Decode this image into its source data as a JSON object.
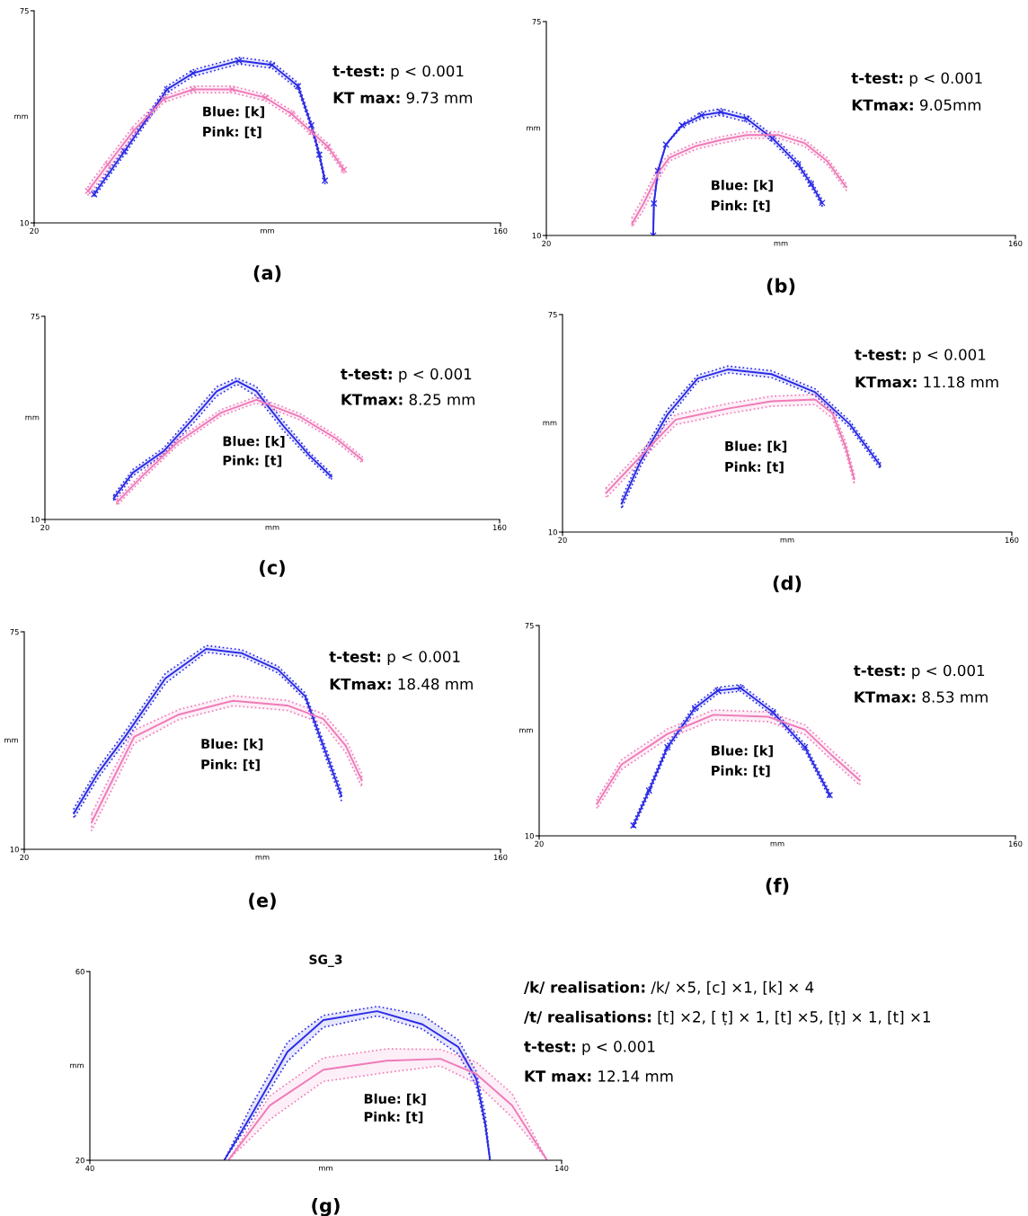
{
  "chart_data": [
    {
      "type": "line",
      "xlabel": "mm",
      "ylabel": "mm",
      "xlim": [
        20,
        160
      ],
      "ylim": [
        10,
        75
      ],
      "xticks": [
        20,
        160
      ],
      "yticks": [
        10,
        75
      ],
      "grid": false,
      "legend": false,
      "line_style": "solid",
      "annotations": [
        "(a)",
        "t-test: p < 0.001",
        "KT max: 9.73 mm",
        "Blue: [k]",
        "Pink: [t]"
      ],
      "series": [
        {
          "color": "#2b2be6",
          "marker": "cross",
          "x": [
            38.0,
            47.1,
            59.9,
            67.7,
            81.5,
            91.4,
            99.2,
            103.2,
            105.6,
            107.3
          ],
          "values": [
            18.8,
            31.9,
            50.9,
            55.9,
            59.7,
            58.4,
            51.9,
            39.9,
            30.9,
            23.0
          ],
          "lower": [
            17.8,
            30.9,
            49.9,
            54.9,
            58.7,
            57.4,
            50.9,
            38.9,
            29.9,
            22.0
          ],
          "upper": [
            19.8,
            32.9,
            51.9,
            56.9,
            60.7,
            59.4,
            52.9,
            40.9,
            31.9,
            24.0
          ]
        },
        {
          "color": "#f07ab8",
          "marker": "cross",
          "x": [
            36.2,
            42.1,
            50.0,
            58.9,
            67.7,
            79.5,
            89.4,
            97.3,
            103.2,
            108.1,
            113.0
          ],
          "values": [
            19.8,
            27.9,
            38.4,
            47.9,
            50.9,
            50.9,
            48.4,
            43.4,
            37.9,
            33.4,
            26.3
          ],
          "lower": [
            18.3,
            26.4,
            36.9,
            46.9,
            49.9,
            49.9,
            47.4,
            42.4,
            36.9,
            32.4,
            25.3
          ],
          "upper": [
            21.3,
            29.4,
            39.9,
            48.9,
            51.9,
            51.9,
            49.4,
            44.4,
            38.9,
            34.4,
            27.3
          ]
        }
      ]
    },
    {
      "type": "line",
      "xlabel": "mm",
      "ylabel": "mm",
      "xlim": [
        20,
        160
      ],
      "ylim": [
        10,
        75
      ],
      "xticks": [
        20,
        160
      ],
      "yticks": [
        10,
        75
      ],
      "grid": false,
      "legend": false,
      "line_style": "solid",
      "annotations": [
        "(b)",
        "t-test: p < 0.001",
        "KTmax: 9.05mm",
        "Blue: [k]",
        "Pink: [t]"
      ],
      "series": [
        {
          "color": "#2b2be6",
          "marker": "cross",
          "x": [
            51.9,
            52.1,
            53.3,
            55.7,
            60.5,
            66.3,
            72.1,
            79.8,
            87.5,
            95.1,
            99.0,
            102.3
          ],
          "values": [
            10.0,
            19.7,
            29.6,
            37.6,
            43.5,
            46.5,
            47.5,
            45.5,
            39.5,
            31.6,
            25.7,
            19.9
          ],
          "lower": [
            10.0,
            19.7,
            29.6,
            37.6,
            43.0,
            45.5,
            46.5,
            44.5,
            38.5,
            30.6,
            24.7,
            18.9
          ],
          "upper": [
            10.0,
            19.7,
            29.6,
            37.6,
            44.0,
            47.5,
            48.5,
            46.5,
            40.5,
            32.6,
            26.7,
            20.9
          ]
        },
        {
          "color": "#f07ab8",
          "marker": "none",
          "x": [
            45.6,
            49.0,
            53.8,
            56.7,
            64.4,
            72.1,
            79.8,
            89.4,
            97.0,
            103.8,
            109.5
          ],
          "values": [
            13.6,
            19.7,
            29.6,
            33.6,
            37.1,
            39.0,
            40.5,
            40.5,
            38.1,
            32.6,
            24.7
          ],
          "lower": [
            12.6,
            17.7,
            27.6,
            32.6,
            36.1,
            38.0,
            39.5,
            39.5,
            37.1,
            31.6,
            23.7
          ],
          "upper": [
            15.6,
            21.7,
            31.6,
            34.6,
            38.1,
            40.0,
            41.5,
            41.5,
            39.1,
            33.6,
            25.7
          ]
        }
      ]
    },
    {
      "type": "line",
      "xlabel": "mm",
      "ylabel": "mm",
      "xlim": [
        20,
        160
      ],
      "ylim": [
        10,
        75
      ],
      "xticks": [
        20,
        160
      ],
      "yticks": [
        10,
        75
      ],
      "grid": false,
      "legend": false,
      "line_style": "solid",
      "annotations": [
        "(c)",
        "t-test: p < 0.001",
        "KTmax: 8.25 mm",
        "Blue: [k]",
        "Pink: [t]"
      ],
      "series": [
        {
          "color": "#2b2be6",
          "marker": "none",
          "x": [
            41.2,
            47.1,
            56.6,
            66.1,
            72.9,
            79.1,
            85.1,
            93.3,
            101.4,
            108.2
          ],
          "values": [
            16.8,
            25.0,
            31.9,
            42.8,
            51.0,
            54.3,
            51.0,
            40.1,
            30.5,
            23.7
          ],
          "lower": [
            15.8,
            24.0,
            30.9,
            41.3,
            49.5,
            53.3,
            49.5,
            38.6,
            29.5,
            22.7
          ],
          "upper": [
            17.8,
            26.0,
            32.9,
            44.3,
            52.5,
            55.3,
            52.5,
            41.6,
            31.5,
            24.7
          ]
        },
        {
          "color": "#f07ab8",
          "marker": "none",
          "x": [
            42.2,
            49.8,
            60.7,
            74.3,
            85.1,
            98.7,
            109.5,
            117.7
          ],
          "values": [
            15.5,
            23.7,
            34.6,
            44.2,
            48.3,
            42.8,
            36.0,
            29.1
          ],
          "lower": [
            14.5,
            22.7,
            33.6,
            43.2,
            47.3,
            41.8,
            35.0,
            28.1
          ],
          "upper": [
            16.5,
            24.7,
            35.6,
            45.2,
            49.3,
            43.8,
            37.0,
            30.1
          ]
        }
      ]
    },
    {
      "type": "line",
      "xlabel": "mm",
      "ylabel": "mm",
      "xlim": [
        20,
        160
      ],
      "ylim": [
        10,
        75
      ],
      "xticks": [
        20,
        160
      ],
      "yticks": [
        10,
        75
      ],
      "grid": false,
      "legend": false,
      "line_style": "solid",
      "annotations": [
        "(d)",
        "t-test: p < 0.001",
        "KTmax: 11.18 mm",
        "Blue: [k]",
        "Pink: [t]"
      ],
      "series": [
        {
          "color": "#2b2be6",
          "marker": "none",
          "x": [
            38.4,
            44.4,
            52.6,
            62.1,
            71.5,
            85.1,
            98.7,
            109.5,
            119.0
          ],
          "values": [
            18.5,
            31.3,
            45.0,
            55.9,
            58.6,
            57.2,
            51.8,
            42.2,
            29.9
          ],
          "lower": [
            17.0,
            29.8,
            43.5,
            54.9,
            57.6,
            56.2,
            50.8,
            41.2,
            28.9
          ],
          "upper": [
            20.0,
            32.8,
            46.5,
            56.9,
            59.6,
            58.2,
            52.8,
            43.2,
            30.9
          ]
        },
        {
          "color": "#f07ab8",
          "marker": "none",
          "x": [
            33.6,
            44.4,
            55.3,
            71.5,
            85.1,
            98.7,
            104.1,
            108.2,
            110.9
          ],
          "values": [
            21.7,
            32.7,
            43.6,
            46.9,
            49.1,
            49.6,
            45.5,
            35.4,
            25.8
          ],
          "lower": [
            20.2,
            31.2,
            42.1,
            45.4,
            47.6,
            48.1,
            44.0,
            33.9,
            24.3
          ],
          "upper": [
            23.2,
            34.2,
            45.1,
            48.4,
            50.6,
            51.1,
            47.0,
            36.9,
            27.3
          ]
        }
      ]
    },
    {
      "type": "line",
      "xlabel": "mm",
      "ylabel": "mm",
      "xlim": [
        20,
        160
      ],
      "ylim": [
        10,
        75
      ],
      "xticks": [
        20,
        160
      ],
      "yticks": [
        10,
        75
      ],
      "grid": false,
      "legend": false,
      "line_style": "solid",
      "annotations": [
        "(e)",
        "t-test: p < 0.001",
        "KTmax: 18.48 mm",
        "Blue: [k]",
        "Pink: [t]"
      ],
      "series": [
        {
          "color": "#2b2be6",
          "marker": "none",
          "x": [
            34.6,
            41.7,
            49.6,
            61.5,
            73.5,
            84.0,
            94.6,
            102.6,
            107.9,
            113.2
          ],
          "values": [
            20.8,
            32.8,
            43.6,
            61.1,
            69.9,
            68.6,
            63.7,
            55.7,
            40.9,
            26.1
          ],
          "lower": [
            19.3,
            31.3,
            42.1,
            59.6,
            68.9,
            67.6,
            62.7,
            54.7,
            39.4,
            24.6
          ],
          "upper": [
            22.3,
            34.3,
            45.1,
            62.6,
            70.9,
            69.6,
            64.7,
            56.7,
            42.4,
            27.6
          ]
        },
        {
          "color": "#f07ab8",
          "marker": "none",
          "x": [
            39.8,
            45.7,
            52.3,
            65.5,
            81.4,
            97.3,
            107.9,
            114.5,
            119.2
          ],
          "values": [
            18.1,
            30.2,
            43.6,
            50.3,
            54.4,
            53.0,
            49.0,
            40.9,
            30.7
          ],
          "lower": [
            15.6,
            27.7,
            41.6,
            48.8,
            52.9,
            51.5,
            47.5,
            38.9,
            28.7
          ],
          "upper": [
            20.6,
            32.7,
            45.6,
            51.8,
            55.9,
            54.5,
            50.5,
            42.9,
            32.7
          ]
        }
      ]
    },
    {
      "type": "line",
      "xlabel": "mm",
      "ylabel": "mm",
      "xlim": [
        20,
        160
      ],
      "ylim": [
        10,
        75
      ],
      "xticks": [
        20,
        160
      ],
      "yticks": [
        10,
        75
      ],
      "grid": false,
      "legend": false,
      "line_style": "solid",
      "annotations": [
        "(f)",
        "t-test: p < 0.001",
        "KTmax: 8.53 mm",
        "Blue: [k]",
        "Pink: [t]"
      ],
      "series": [
        {
          "color": "#2b2be6",
          "marker": "cross",
          "x": [
            47.7,
            52.3,
            57.7,
            65.8,
            72.5,
            79.2,
            88.7,
            98.1,
            105.4
          ],
          "values": [
            13.2,
            24.0,
            37.4,
            49.5,
            54.9,
            55.7,
            48.2,
            37.4,
            22.6
          ],
          "lower": [
            12.2,
            23.0,
            36.4,
            48.5,
            53.9,
            54.7,
            47.2,
            36.4,
            21.6
          ],
          "upper": [
            14.2,
            25.0,
            38.4,
            50.5,
            55.9,
            56.7,
            49.2,
            38.4,
            23.6
          ]
        },
        {
          "color": "#f07ab8",
          "marker": "none",
          "x": [
            37.0,
            44.2,
            57.7,
            71.2,
            87.3,
            98.1,
            106.2,
            114.2
          ],
          "values": [
            19.9,
            32.0,
            41.5,
            47.4,
            46.8,
            42.8,
            34.7,
            27.2
          ],
          "lower": [
            18.4,
            30.5,
            40.0,
            45.9,
            45.3,
            41.3,
            33.2,
            25.7
          ],
          "upper": [
            21.4,
            33.5,
            43.0,
            48.9,
            48.3,
            44.3,
            36.2,
            28.7
          ]
        }
      ]
    },
    {
      "type": "line",
      "title": "SG_3",
      "xlabel": "mm",
      "ylabel": "mm",
      "xlim": [
        40,
        140
      ],
      "ylim": [
        20,
        60
      ],
      "xticks": [
        40,
        140
      ],
      "yticks": [
        20,
        60
      ],
      "grid": false,
      "legend": false,
      "line_style": "solid",
      "annotations": [
        "(g)",
        "/k/ realisation: /k/ ×5, [c] ×1, [k] × 4",
        "/t/ realisations: [t] ×2, [ ṭ] × 1, [t] ×5, [ṭ] × 1, [t] ×1",
        "t-test: p < 0.001",
        "KT max: 12.14 mm",
        "Blue: [k]",
        "Pink: [t]"
      ],
      "series": [
        {
          "color": "#2b2be6",
          "marker": "none",
          "x": [
            68.6,
            74.3,
            81.9,
            89.5,
            100.9,
            110.5,
            118.1,
            121.9,
            123.8,
            124.8
          ],
          "values": [
            20.2,
            29.7,
            43.0,
            49.7,
            51.6,
            48.8,
            44.0,
            37.3,
            27.8,
            20.2
          ],
          "lower": [
            20.2,
            28.7,
            41.0,
            48.2,
            50.6,
            47.8,
            42.5,
            35.8,
            26.8,
            20.2
          ],
          "upper": [
            20.2,
            31.7,
            45.0,
            50.7,
            52.6,
            50.8,
            45.5,
            38.8,
            29.8,
            20.2
          ]
        },
        {
          "color": "#f07ab8",
          "marker": "none",
          "x": [
            69.5,
            78.1,
            89.5,
            102.9,
            114.3,
            121.9,
            129.5,
            136.8
          ],
          "values": [
            20.2,
            31.6,
            39.2,
            41.1,
            41.5,
            38.3,
            31.6,
            20.2
          ],
          "lower": [
            20.2,
            28.6,
            36.7,
            38.6,
            40.0,
            36.3,
            29.1,
            20.2
          ],
          "upper": [
            20.2,
            33.6,
            41.7,
            43.6,
            43.5,
            40.8,
            34.1,
            20.2
          ]
        }
      ]
    }
  ]
}
